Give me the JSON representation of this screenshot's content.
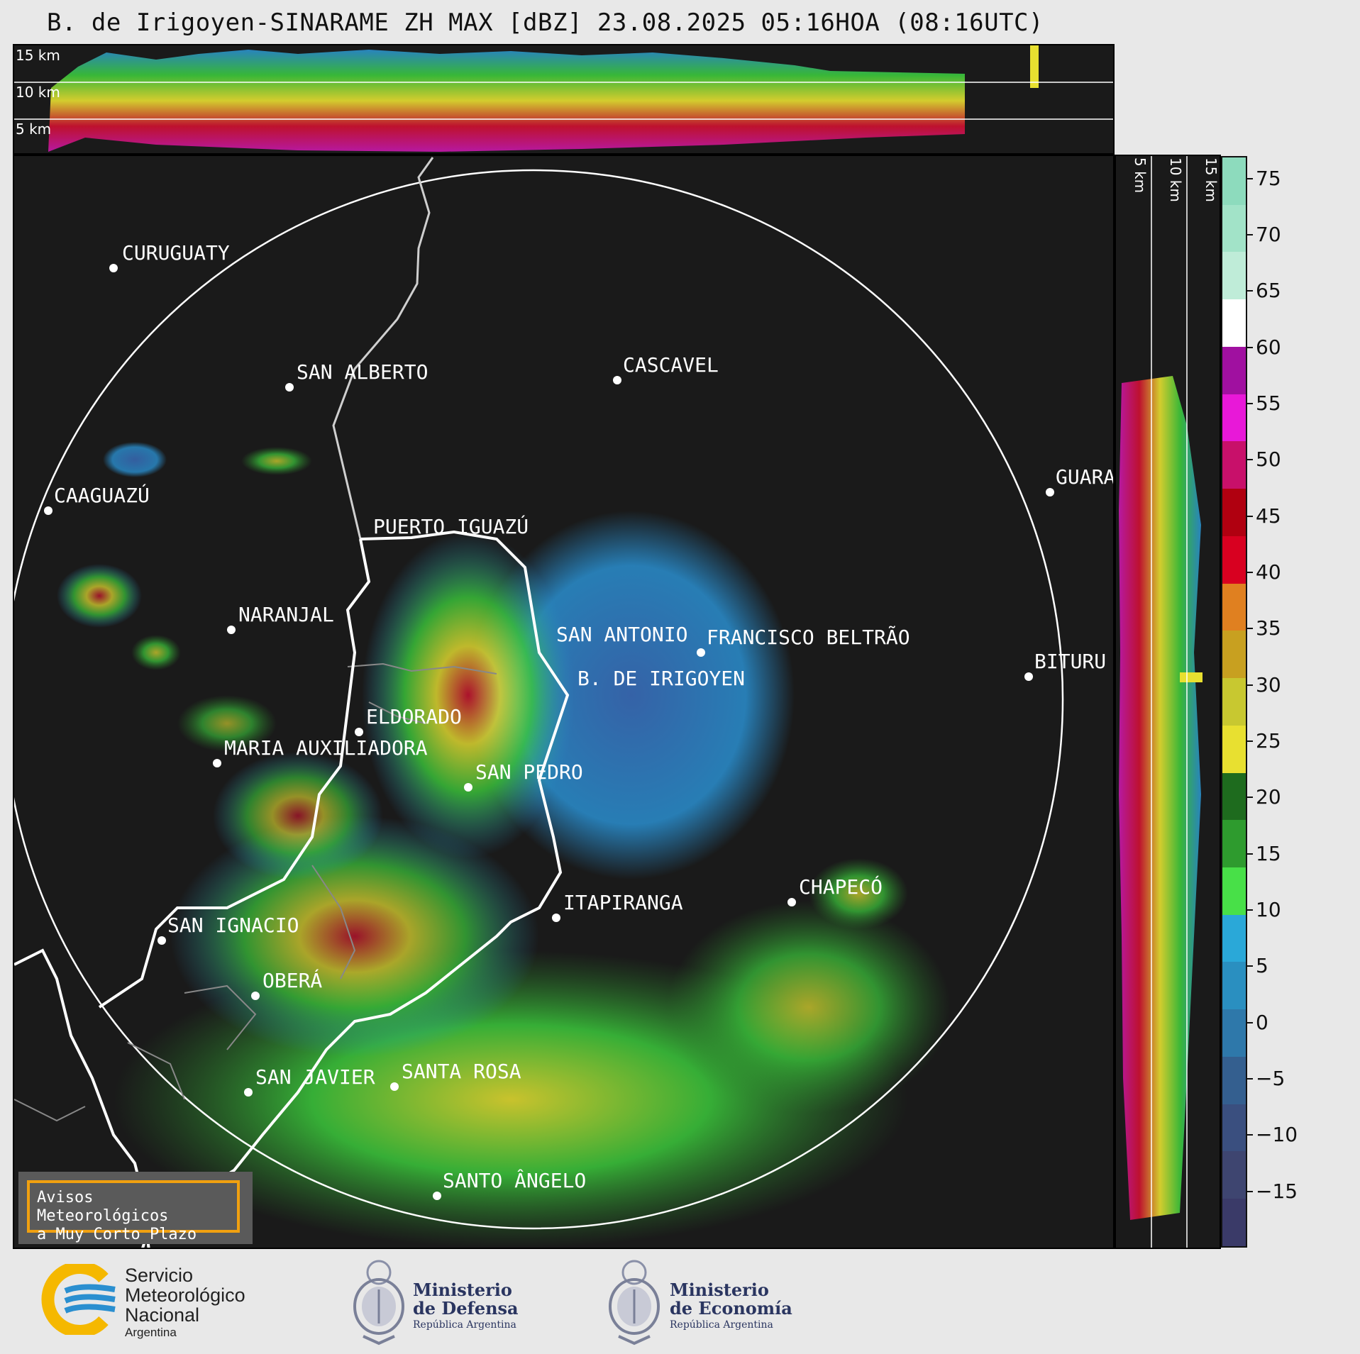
{
  "title": "B. de Irigoyen-SINARAME ZH MAX [dBZ] 23.08.2025 05:16HOA (08:16UTC)",
  "top_panel": {
    "labels": [
      "15 km",
      "10 km",
      "5 km"
    ]
  },
  "side_panel": {
    "labels": [
      "5 km",
      "10 km",
      "15 km"
    ]
  },
  "colorbar": {
    "ticks": [
      "75",
      "70",
      "65",
      "60",
      "55",
      "50",
      "45",
      "40",
      "35",
      "30",
      "25",
      "20",
      "15",
      "10",
      "5",
      "0",
      "−5",
      "−10",
      "−15"
    ],
    "range": [
      -20,
      77
    ]
  },
  "cities": [
    {
      "name": "CURUGUATY"
    },
    {
      "name": "SAN ALBERTO"
    },
    {
      "name": "CASCAVEL"
    },
    {
      "name": "CAAGUAZÚ"
    },
    {
      "name": "GUARA"
    },
    {
      "name": "PUERTO IGUAZÚ"
    },
    {
      "name": "NARANJAL"
    },
    {
      "name": "SAN ANTONIO"
    },
    {
      "name": "FRANCISCO BELTRÃO"
    },
    {
      "name": "BITURU"
    },
    {
      "name": "B. DE IRIGOYEN"
    },
    {
      "name": "ELDORADO"
    },
    {
      "name": "MARIA AUXILIADORA"
    },
    {
      "name": "SAN PEDRO"
    },
    {
      "name": "CHAPECÓ"
    },
    {
      "name": "ITAPIRANGA"
    },
    {
      "name": "SAN IGNACIO"
    },
    {
      "name": "OBERÁ"
    },
    {
      "name": "SAN JAVIER"
    },
    {
      "name": "SANTA ROSA"
    },
    {
      "name": "SANTO ÂNGELO"
    }
  ],
  "aviso": {
    "line1": "Avisos Meteorológicos",
    "line2": "a Muy Corto Plazo"
  },
  "logos": {
    "smn": {
      "line1": "Servicio",
      "line2": "Meteorológico",
      "line3": "Nacional",
      "line4": "Argentina"
    },
    "defensa": {
      "line1": "Ministerio",
      "line2": "de Defensa",
      "line3": "República Argentina"
    },
    "economia": {
      "line1": "Ministerio",
      "line2": "de Economía",
      "line3": "República Argentina"
    }
  },
  "colors": {
    "background": "#1a1a1a",
    "border_major": "#ffffff",
    "border_minor": "#888888",
    "aviso_border": "#f0a010",
    "smn_yellow": "#f5b800",
    "smn_blue": "#2a8fd0"
  }
}
